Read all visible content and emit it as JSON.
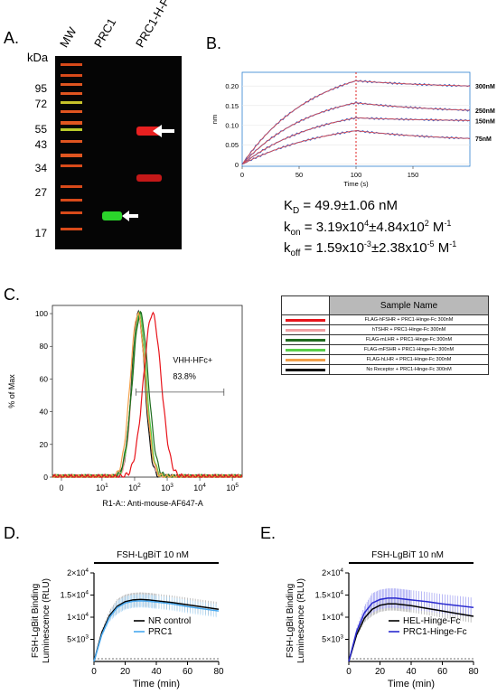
{
  "panel_a": {
    "label": "A.",
    "kda_label": "kDa",
    "lanes": [
      "MW",
      "PRC1",
      "PRC1-H-Fc"
    ],
    "mw_markers": [
      "95",
      "72",
      "55",
      "43",
      "34",
      "27",
      "17"
    ]
  },
  "panel_b": {
    "label": "B.",
    "eq_kd": {
      "main": "K",
      "sub": "D",
      "rest": " = 49.9±1.06 nM"
    },
    "eq_kon": {
      "main": "k",
      "sub": "on",
      "pre": " = 3.19x10",
      "sup1": "4",
      "mid": "±4.84x10",
      "sup2": "2",
      "end": " M",
      "sup3": "-1"
    },
    "eq_koff": {
      "main": "k",
      "sub": "off",
      "pre": " = 1.59x10",
      "sup1": "-3",
      "mid": "±2.38x10",
      "sup2": "-5",
      "end": " M",
      "sup3": "-1"
    }
  },
  "panel_c": {
    "label": "C.",
    "gate_name": "VHH-HFc+",
    "gate_value": "83.8%",
    "legend_header": "Sample Name",
    "legend_rows": [
      {
        "label": "FLAG-hFSHR + PRC1-Hinge-Fc 300nM",
        "color": "#e8141b"
      },
      {
        "label": "hTSHR + PRC1-Hinge-Fc 300nM",
        "color": "#f2a0a4"
      },
      {
        "label": "FLAG-mLHR + PRC1-Hinge-Fc 300nM",
        "color": "#1e6b1e"
      },
      {
        "label": "FLAG-mFSHR + PRC1-Hinge-Fc 300nM",
        "color": "#58d04a"
      },
      {
        "label": "FLAG-hLHR + PRC1-Hinge-Fc 300nM",
        "color": "#f3a04a"
      },
      {
        "label": "No Receptor + PRC1-Hinge-Fc 300nM",
        "color": "#111111"
      }
    ]
  },
  "panel_d": {
    "label": "D.",
    "treatment": "FSH-LgBiT 10 nM",
    "legend": [
      "NR control",
      "PRC1"
    ]
  },
  "panel_e": {
    "label": "E.",
    "treatment": "FSH-LgBiT 10 nM",
    "legend": [
      "HEL-Hinge-Fc",
      "PRC1-Hinge-Fc"
    ]
  },
  "chart_data": [
    {
      "panel": "B",
      "type": "line",
      "xlabel": "Time (s)",
      "ylabel": "nm",
      "xlim": [
        0,
        200
      ],
      "ylim": [
        -0.005,
        0.235
      ],
      "x_ticks": [
        0,
        50,
        100,
        150
      ],
      "y_ticks": [
        0,
        0.05,
        0.1,
        0.15,
        0.2
      ],
      "y_tick_labels": [
        "0",
        "0.05",
        "0.10",
        "0.15",
        "0.20"
      ],
      "association_end": 100,
      "series": [
        {
          "name": "300nM",
          "plateau": 0.268,
          "k_obs": 0.0159,
          "end": 0.2
        },
        {
          "name": "250nM",
          "plateau": 0.195,
          "k_obs": 0.0164,
          "end": 0.138
        },
        {
          "name": "150nM",
          "plateau": 0.155,
          "k_obs": 0.0145,
          "end": 0.112
        },
        {
          "name": "75nM",
          "plateau": 0.119,
          "k_obs": 0.0128,
          "end": 0.066
        }
      ]
    },
    {
      "panel": "C",
      "type": "area",
      "xlabel": "R1-A:: Anti-mouse-AF647-A",
      "ylabel": "% of Max",
      "x_scale": "log",
      "xlim": [
        0.3,
        200000
      ],
      "ylim": [
        0,
        105
      ],
      "y_ticks": [
        0,
        20,
        40,
        60,
        80,
        100
      ],
      "x_tick_labels": [
        "0",
        "10",
        "10",
        "10",
        "10",
        "10"
      ],
      "x_tick_exponents": [
        "",
        "1",
        "2",
        "3",
        "4",
        "5"
      ],
      "gate": [
        110,
        55000
      ],
      "series": [
        {
          "sample": "FLAG-hFSHR",
          "peak": 350,
          "width": 0.27
        },
        {
          "sample": "hTSHR",
          "peak": 140,
          "width": 0.21
        },
        {
          "sample": "FLAG-mLHR",
          "peak": 150,
          "width": 0.24
        },
        {
          "sample": "FLAG-mFSHR",
          "peak": 140,
          "width": 0.22
        },
        {
          "sample": "FLAG-hLHR",
          "peak": 125,
          "width": 0.23
        },
        {
          "sample": "No Receptor",
          "peak": 130,
          "width": 0.2
        }
      ]
    },
    {
      "panel": "D",
      "type": "line",
      "xlabel": "Time (min)",
      "ylabel": "FSH-LgBit Binding Luminescence (RLU)",
      "xlim": [
        0,
        80
      ],
      "ylim": [
        0,
        20000
      ],
      "x_ticks": [
        0,
        20,
        40,
        60,
        80
      ],
      "y_ticks": [
        5000,
        10000,
        15000,
        20000
      ],
      "y_tick_mantissas": [
        "5×10",
        "1×10",
        "1.5×10",
        "2×10"
      ],
      "y_tick_exponents": [
        "3",
        "4",
        "4",
        "4"
      ],
      "series": [
        {
          "name": "NR control",
          "x": [
            0,
            5,
            10,
            15,
            20,
            25,
            30,
            35,
            40,
            50,
            60,
            70,
            80
          ],
          "y": [
            0,
            6500,
            10400,
            12500,
            13500,
            13900,
            14000,
            13900,
            13700,
            13300,
            12800,
            12300,
            11800
          ]
        },
        {
          "name": "PRC1",
          "x": [
            0,
            5,
            10,
            15,
            20,
            25,
            30,
            35,
            40,
            50,
            60,
            70,
            80
          ],
          "y": [
            0,
            6000,
            10000,
            12200,
            13200,
            13600,
            13700,
            13600,
            13400,
            13000,
            12400,
            11900,
            11400
          ]
        }
      ]
    },
    {
      "panel": "E",
      "type": "line",
      "xlabel": "Time (min)",
      "ylabel": "FSH-LgBit Binding Luminescence (RLU)",
      "xlim": [
        0,
        80
      ],
      "ylim": [
        0,
        20000
      ],
      "x_ticks": [
        0,
        20,
        40,
        60,
        80
      ],
      "y_ticks": [
        5000,
        10000,
        15000,
        20000
      ],
      "y_tick_mantissas": [
        "5×10",
        "1×10",
        "1.5×10",
        "2×10"
      ],
      "y_tick_exponents": [
        "3",
        "4",
        "4",
        "4"
      ],
      "series": [
        {
          "name": "HEL-Hinge-Fc",
          "x": [
            0,
            5,
            10,
            15,
            20,
            25,
            30,
            35,
            40,
            50,
            60,
            70,
            80
          ],
          "y": [
            0,
            6000,
            9800,
            11800,
            12700,
            13000,
            13000,
            12800,
            12600,
            12000,
            11400,
            10800,
            10200
          ]
        },
        {
          "name": "PRC1-Hinge-Fc",
          "x": [
            0,
            5,
            10,
            15,
            20,
            25,
            30,
            35,
            40,
            50,
            60,
            70,
            80
          ],
          "y": [
            0,
            6800,
            11000,
            13200,
            14000,
            14300,
            14300,
            14100,
            13900,
            13500,
            13000,
            12600,
            12200
          ]
        }
      ]
    }
  ]
}
